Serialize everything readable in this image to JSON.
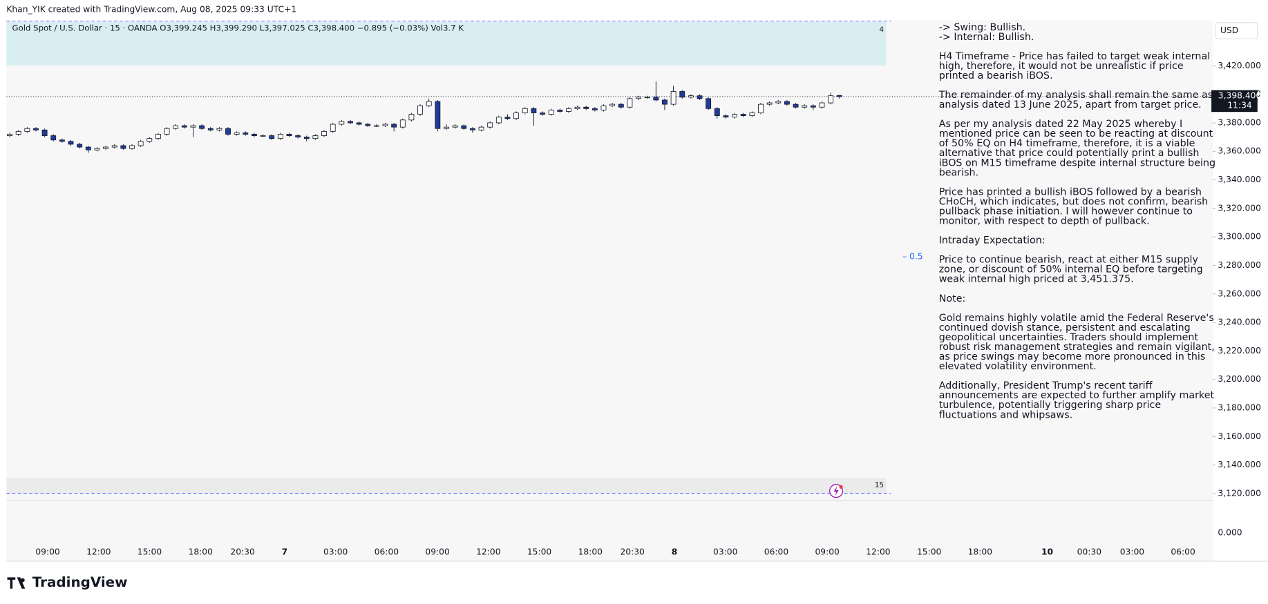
{
  "chart_data": {
    "type": "candlestick",
    "attribution": "Khan_YIK created with TradingView.com, Aug 08, 2025 09:33 UTC+1",
    "legend_text": "Gold Spot / U.S. Dollar · 15 · OANDA  O3,399.245  H3,399.290  L3,397.025  C3,398.400  −0.895 (−0.03%)  Vol3.7 K",
    "currency": "USD",
    "brand": "TradingView",
    "top_label": "4",
    "bottom_label": "15",
    "fib_label": "– 0.5",
    "up_color": "#ffffff",
    "down_color": "#1f3c9b",
    "ylim": [
      3115,
      3452
    ],
    "yticks": [
      {
        "value": 3120,
        "label": "3,120.000"
      },
      {
        "value": 3140,
        "label": "3,140.000"
      },
      {
        "value": 3160,
        "label": "3,160.000"
      },
      {
        "value": 3180,
        "label": "3,180.000"
      },
      {
        "value": 3200,
        "label": "3,200.000"
      },
      {
        "value": 3220,
        "label": "3,220.000"
      },
      {
        "value": 3240,
        "label": "3,240.000"
      },
      {
        "value": 3260,
        "label": "3,260.000"
      },
      {
        "value": 3280,
        "label": "3,280.000"
      },
      {
        "value": 3300,
        "label": "3,300.000"
      },
      {
        "value": 3320,
        "label": "3,320.000"
      },
      {
        "value": 3340,
        "label": "3,340.000"
      },
      {
        "value": 3360,
        "label": "3,360.000"
      },
      {
        "value": 3380,
        "label": "3,380.000"
      },
      {
        "value": 3400,
        "label": "3,400.000"
      },
      {
        "value": 3420,
        "label": "3,420.000"
      }
    ],
    "volume_yticks": [
      {
        "value": 0,
        "label": "0.000"
      }
    ],
    "last_price": {
      "value": 3398.4,
      "label": "3,398.400"
    },
    "countdown": "11:34",
    "xticks": [
      "09:00",
      "12:00",
      "15:00",
      "18:00",
      "20:30",
      "7",
      "03:00",
      "06:00",
      "09:00",
      "12:00",
      "15:00",
      "18:00",
      "20:30",
      "8",
      "03:00",
      "06:00",
      "09:00",
      "12:00",
      "15:00",
      "18:00",
      "10",
      "00:30",
      "03:00",
      "06:00"
    ],
    "open": [
      3371,
      3372,
      3374,
      3376,
      3375,
      3371,
      3368,
      3367,
      3365,
      3363,
      3361,
      3362,
      3363,
      3364,
      3362,
      3364,
      3367,
      3369,
      3372,
      3376,
      3378,
      3377,
      3378,
      3376,
      3375,
      3376,
      3372,
      3373,
      3372,
      3371,
      3371,
      3369,
      3372,
      3371,
      3370,
      3369,
      3371,
      3374,
      3379,
      3381,
      3380,
      3379,
      3378,
      3378,
      3379,
      3377,
      3382,
      3386,
      3392,
      3395,
      3376,
      3377,
      3378,
      3376,
      3375,
      3377,
      3380,
      3384,
      3383,
      3387,
      3390,
      3387,
      3386,
      3389,
      3388,
      3390,
      3391,
      3390,
      3389,
      3392,
      3393,
      3391,
      3397,
      3398,
      3398,
      3396,
      3393,
      3402,
      3398,
      3399,
      3397,
      3390,
      3385,
      3384,
      3386,
      3385,
      3387,
      3393,
      3394,
      3395,
      3393,
      3391,
      3392,
      3391,
      3394,
      3399.245
    ],
    "high": [
      3373,
      3375,
      3377,
      3377,
      3376,
      3372,
      3369,
      3368,
      3366,
      3364,
      3363,
      3364,
      3365,
      3365,
      3365,
      3368,
      3370,
      3373,
      3377,
      3379,
      3379,
      3379,
      3379,
      3377,
      3377,
      3377,
      3374,
      3374,
      3373,
      3372,
      3372,
      3373,
      3373,
      3372,
      3371,
      3372,
      3375,
      3380,
      3382,
      3382,
      3381,
      3380,
      3379,
      3380,
      3380,
      3383,
      3387,
      3393,
      3397,
      3396,
      3379,
      3379,
      3379,
      3377,
      3378,
      3381,
      3385,
      3386,
      3388,
      3391,
      3391,
      3388,
      3390,
      3390,
      3391,
      3392,
      3392,
      3391,
      3393,
      3394,
      3394,
      3398,
      3399,
      3399,
      3409,
      3397,
      3406,
      3403,
      3400,
      3400,
      3398,
      3391,
      3386,
      3387,
      3387,
      3388,
      3394,
      3395,
      3396,
      3396,
      3394,
      3393,
      3393,
      3395,
      3401,
      3399.29
    ],
    "low": [
      3370,
      3371,
      3373,
      3374,
      3370,
      3367,
      3366,
      3364,
      3362,
      3359,
      3360,
      3361,
      3362,
      3361,
      3361,
      3363,
      3366,
      3368,
      3371,
      3375,
      3376,
      3370,
      3375,
      3374,
      3374,
      3371,
      3371,
      3371,
      3370,
      3370,
      3368,
      3368,
      3370,
      3369,
      3367,
      3368,
      3370,
      3373,
      3378,
      3379,
      3378,
      3377,
      3377,
      3377,
      3374,
      3376,
      3381,
      3385,
      3391,
      3374,
      3375,
      3376,
      3375,
      3373,
      3374,
      3376,
      3379,
      3382,
      3382,
      3386,
      3378,
      3385,
      3385,
      3387,
      3387,
      3389,
      3389,
      3388,
      3388,
      3391,
      3390,
      3390,
      3396,
      3397,
      3395,
      3389,
      3392,
      3397,
      3397,
      3396,
      3389,
      3383,
      3383,
      3383,
      3384,
      3384,
      3386,
      3392,
      3393,
      3392,
      3390,
      3390,
      3389,
      3390,
      3393,
      3397.025
    ],
    "close": [
      3372,
      3374,
      3376,
      3375,
      3371,
      3368,
      3367,
      3365,
      3363,
      3361,
      3362,
      3363,
      3364,
      3362,
      3364,
      3367,
      3369,
      3372,
      3376,
      3378,
      3377,
      3378,
      3376,
      3375,
      3376,
      3372,
      3373,
      3372,
      3371,
      3371,
      3369,
      3372,
      3371,
      3370,
      3369,
      3371,
      3374,
      3379,
      3381,
      3380,
      3379,
      3378,
      3378,
      3379,
      3377,
      3382,
      3386,
      3392,
      3395,
      3376,
      3377,
      3378,
      3376,
      3375,
      3377,
      3380,
      3384,
      3383,
      3387,
      3390,
      3387,
      3386,
      3389,
      3388,
      3390,
      3391,
      3390,
      3389,
      3392,
      3393,
      3391,
      3397,
      3398,
      3398,
      3396,
      3393,
      3402,
      3398,
      3399,
      3397,
      3390,
      3385,
      3384,
      3386,
      3385,
      3387,
      3393,
      3394,
      3395,
      3393,
      3391,
      3392,
      3391,
      3394,
      3399,
      3398.4
    ],
    "notes": [
      [
        "-> Swing: Bullish.",
        "-> Internal: Bullish."
      ],
      [
        "H4 Timeframe - Price has failed to target weak internal",
        "high, therefore, it would not be unrealistic if price",
        "printed a bearish iBOS."
      ],
      [
        "The remainder of my analysis shall remain the same as",
        "analysis dated  13 June 2025, apart from target price."
      ],
      [
        "As per my analysis dated 22 May 2025 whereby I",
        "mentioned price can be seen to be reacting at discount",
        "of 50% EQ on H4 timeframe, therefore, it is a viable",
        "alternative that price could potentially print a bullish",
        "iBOS on M15 timeframe despite internal structure being",
        "bearish."
      ],
      [
        "Price has printed a bullish iBOS followed by a bearish",
        "CHoCH, which indicates, but does not confirm, bearish",
        "pullback phase initiation.  I will however continue to",
        "monitor, with respect to depth of pullback."
      ],
      [
        "Intraday Expectation:"
      ],
      [
        "Price to continue bearish, react at either M15 supply",
        "zone, or discount of 50% internal EQ before targeting",
        "weak internal high priced at 3,451.375."
      ],
      [
        "Note:"
      ],
      [
        "Gold remains highly volatile amid the Federal Reserve's",
        "continued dovish stance, persistent and escalating",
        "geopolitical uncertainties. Traders should implement",
        "robust risk management strategies and remain vigilant,",
        "as price swings may become more pronounced in this",
        "elevated volatility environment."
      ],
      [
        "Additionally, President Trump's recent tariff",
        "announcements are expected to further amplify market",
        "turbulence, potentially triggering sharp price",
        "fluctuations and whipsaws."
      ]
    ]
  }
}
